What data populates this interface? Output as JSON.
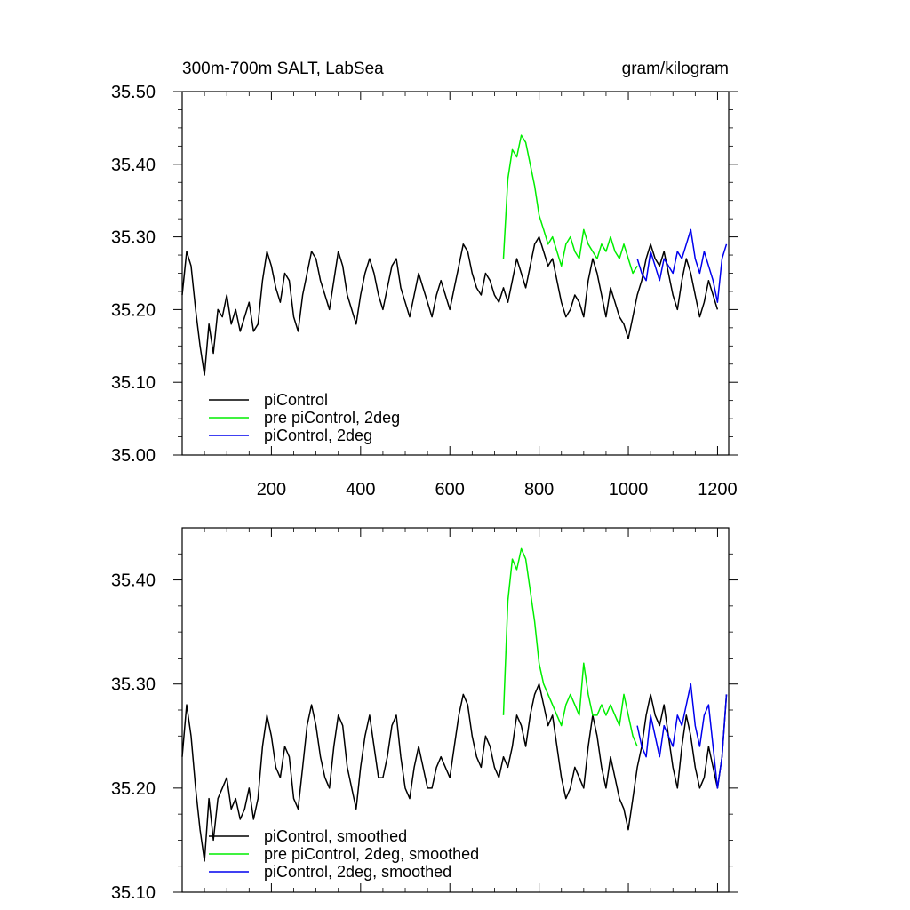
{
  "chart_data": [
    {
      "type": "line",
      "title": "300m-700m SALT, LabSea",
      "units": "gram/kilogram",
      "xlim": [
        0,
        1225
      ],
      "ylim": [
        35.0,
        35.5
      ],
      "xticks": [
        200,
        400,
        600,
        800,
        1000,
        1200
      ],
      "xtick_labels": [
        "200",
        "400",
        "600",
        "800",
        "1000",
        "1200"
      ],
      "yticks": [
        35.0,
        35.1,
        35.2,
        35.3,
        35.4,
        35.5
      ],
      "ytick_labels": [
        "35.00",
        "35.10",
        "35.20",
        "35.30",
        "35.40",
        "35.50"
      ],
      "legend_position": "lower-left",
      "series": [
        {
          "name": "piControl",
          "color": "#000000",
          "x": [
            0,
            10,
            20,
            30,
            40,
            50,
            60,
            70,
            80,
            90,
            100,
            110,
            120,
            130,
            140,
            150,
            160,
            170,
            180,
            190,
            200,
            210,
            220,
            230,
            240,
            250,
            260,
            270,
            280,
            290,
            300,
            310,
            320,
            330,
            340,
            350,
            360,
            370,
            380,
            390,
            400,
            410,
            420,
            430,
            440,
            450,
            460,
            470,
            480,
            490,
            500,
            510,
            520,
            530,
            540,
            550,
            560,
            570,
            580,
            590,
            600,
            610,
            620,
            630,
            640,
            650,
            660,
            670,
            680,
            690,
            700,
            710,
            720,
            730,
            740,
            750,
            760,
            770,
            780,
            790,
            800,
            810,
            820,
            830,
            840,
            850,
            860,
            870,
            880,
            890,
            900,
            910,
            920,
            930,
            940,
            950,
            960,
            970,
            980,
            990,
            1000,
            1010,
            1020,
            1030,
            1040,
            1050,
            1060,
            1070,
            1080,
            1090,
            1100,
            1110,
            1120,
            1130,
            1140,
            1150,
            1160,
            1170,
            1180,
            1190,
            1200
          ],
          "y": [
            35.22,
            35.28,
            35.26,
            35.2,
            35.15,
            35.11,
            35.18,
            35.14,
            35.2,
            35.19,
            35.22,
            35.18,
            35.2,
            35.17,
            35.19,
            35.21,
            35.17,
            35.18,
            35.24,
            35.28,
            35.26,
            35.23,
            35.21,
            35.25,
            35.24,
            35.19,
            35.17,
            35.22,
            35.25,
            35.28,
            35.27,
            35.24,
            35.22,
            35.2,
            35.24,
            35.28,
            35.26,
            35.22,
            35.2,
            35.18,
            35.22,
            35.25,
            35.27,
            35.25,
            35.22,
            35.2,
            35.23,
            35.26,
            35.27,
            35.23,
            35.21,
            35.19,
            35.22,
            35.25,
            35.23,
            35.21,
            35.19,
            35.22,
            35.24,
            35.22,
            35.2,
            35.23,
            35.26,
            35.29,
            35.28,
            35.25,
            35.23,
            35.22,
            35.25,
            35.24,
            35.22,
            35.21,
            35.23,
            35.21,
            35.24,
            35.27,
            35.25,
            35.23,
            35.26,
            35.29,
            35.3,
            35.28,
            35.26,
            35.27,
            35.24,
            35.21,
            35.19,
            35.2,
            35.22,
            35.21,
            35.19,
            35.24,
            35.27,
            35.25,
            35.22,
            35.19,
            35.23,
            35.21,
            35.19,
            35.18,
            35.16,
            35.19,
            35.22,
            35.24,
            35.27,
            35.29,
            35.27,
            35.26,
            35.28,
            35.25,
            35.22,
            35.2,
            35.24,
            35.27,
            35.25,
            35.22,
            35.19,
            35.21,
            35.24,
            35.22,
            35.2
          ]
        },
        {
          "name": "pre piControl, 2deg",
          "color": "#00ee00",
          "x": [
            720,
            730,
            740,
            750,
            760,
            770,
            780,
            790,
            800,
            810,
            820,
            830,
            840,
            850,
            860,
            870,
            880,
            890,
            900,
            910,
            920,
            930,
            940,
            950,
            960,
            970,
            980,
            990,
            1000,
            1010,
            1020
          ],
          "y": [
            35.27,
            35.38,
            35.42,
            35.41,
            35.44,
            35.43,
            35.4,
            35.37,
            35.33,
            35.31,
            35.29,
            35.3,
            35.28,
            35.26,
            35.29,
            35.3,
            35.28,
            35.27,
            35.31,
            35.29,
            35.28,
            35.27,
            35.29,
            35.28,
            35.3,
            35.28,
            35.27,
            35.29,
            35.27,
            35.25,
            35.26
          ]
        },
        {
          "name": "piControl, 2deg",
          "color": "#0000ee",
          "x": [
            1020,
            1030,
            1040,
            1050,
            1060,
            1070,
            1080,
            1090,
            1100,
            1110,
            1120,
            1130,
            1140,
            1150,
            1160,
            1170,
            1180,
            1190,
            1200,
            1210,
            1220
          ],
          "y": [
            35.27,
            35.25,
            35.24,
            35.28,
            35.26,
            35.24,
            35.27,
            35.26,
            35.25,
            35.28,
            35.27,
            35.29,
            35.31,
            35.27,
            35.25,
            35.28,
            35.26,
            35.24,
            35.21,
            35.27,
            35.29
          ]
        }
      ]
    },
    {
      "type": "line",
      "xlim": [
        0,
        1225
      ],
      "ylim": [
        35.1,
        35.45
      ],
      "xticks": [
        200,
        400,
        600,
        800,
        1000,
        1200
      ],
      "yticks": [
        35.1,
        35.2,
        35.3,
        35.4
      ],
      "ytick_labels": [
        "35.10",
        "35.20",
        "35.30",
        "35.40"
      ],
      "legend_position": "lower-left",
      "series": [
        {
          "name": "piControl, smoothed",
          "color": "#000000",
          "x": [
            0,
            10,
            20,
            30,
            40,
            50,
            60,
            70,
            80,
            90,
            100,
            110,
            120,
            130,
            140,
            150,
            160,
            170,
            180,
            190,
            200,
            210,
            220,
            230,
            240,
            250,
            260,
            270,
            280,
            290,
            300,
            310,
            320,
            330,
            340,
            350,
            360,
            370,
            380,
            390,
            400,
            410,
            420,
            430,
            440,
            450,
            460,
            470,
            480,
            490,
            500,
            510,
            520,
            530,
            540,
            550,
            560,
            570,
            580,
            590,
            600,
            610,
            620,
            630,
            640,
            650,
            660,
            670,
            680,
            690,
            700,
            710,
            720,
            730,
            740,
            750,
            760,
            770,
            780,
            790,
            800,
            810,
            820,
            830,
            840,
            850,
            860,
            870,
            880,
            890,
            900,
            910,
            920,
            930,
            940,
            950,
            960,
            970,
            980,
            990,
            1000,
            1010,
            1020,
            1030,
            1040,
            1050,
            1060,
            1070,
            1080,
            1090,
            1100,
            1110,
            1120,
            1130,
            1140,
            1150,
            1160,
            1170,
            1180,
            1190,
            1200,
            1210,
            1220
          ],
          "y": [
            35.23,
            35.28,
            35.25,
            35.2,
            35.16,
            35.13,
            35.19,
            35.15,
            35.19,
            35.2,
            35.21,
            35.18,
            35.19,
            35.17,
            35.18,
            35.2,
            35.17,
            35.19,
            35.24,
            35.27,
            35.25,
            35.22,
            35.21,
            35.24,
            35.23,
            35.19,
            35.18,
            35.22,
            35.26,
            35.28,
            35.26,
            35.23,
            35.21,
            35.2,
            35.24,
            35.27,
            35.26,
            35.22,
            35.2,
            35.18,
            35.22,
            35.25,
            35.27,
            35.24,
            35.21,
            35.21,
            35.23,
            35.26,
            35.27,
            35.23,
            35.2,
            35.19,
            35.22,
            35.24,
            35.22,
            35.2,
            35.2,
            35.22,
            35.23,
            35.22,
            35.21,
            35.24,
            35.27,
            35.29,
            35.28,
            35.25,
            35.23,
            35.22,
            35.25,
            35.24,
            35.22,
            35.21,
            35.23,
            35.22,
            35.24,
            35.27,
            35.26,
            35.24,
            35.27,
            35.29,
            35.3,
            35.28,
            35.26,
            35.27,
            35.24,
            35.21,
            35.19,
            35.2,
            35.22,
            35.21,
            35.2,
            35.24,
            35.27,
            35.25,
            35.22,
            35.2,
            35.23,
            35.21,
            35.19,
            35.18,
            35.16,
            35.19,
            35.22,
            35.24,
            35.27,
            35.29,
            35.27,
            35.26,
            35.28,
            35.25,
            35.22,
            35.2,
            35.24,
            35.27,
            35.25,
            35.22,
            35.2,
            35.21,
            35.24,
            35.22,
            35.2,
            35.23,
            35.29
          ]
        },
        {
          "name": "pre piControl, 2deg, smoothed",
          "color": "#00ee00",
          "x": [
            720,
            730,
            740,
            750,
            760,
            770,
            780,
            790,
            800,
            810,
            820,
            830,
            840,
            850,
            860,
            870,
            880,
            890,
            900,
            910,
            920,
            930,
            940,
            950,
            960,
            970,
            980,
            990,
            1000,
            1010,
            1020
          ],
          "y": [
            35.27,
            35.38,
            35.42,
            35.41,
            35.43,
            35.42,
            35.39,
            35.36,
            35.32,
            35.3,
            35.29,
            35.28,
            35.27,
            35.26,
            35.28,
            35.29,
            35.28,
            35.27,
            35.32,
            35.29,
            35.27,
            35.27,
            35.28,
            35.27,
            35.28,
            35.27,
            35.26,
            35.29,
            35.27,
            35.25,
            35.24
          ]
        },
        {
          "name": "piControl, 2deg, smoothed",
          "color": "#0000ee",
          "x": [
            1020,
            1030,
            1040,
            1050,
            1060,
            1070,
            1080,
            1090,
            1100,
            1110,
            1120,
            1130,
            1140,
            1150,
            1160,
            1170,
            1180,
            1190,
            1200,
            1210,
            1220
          ],
          "y": [
            35.26,
            35.24,
            35.23,
            35.27,
            35.25,
            35.23,
            35.26,
            35.25,
            35.24,
            35.27,
            35.26,
            35.28,
            35.3,
            35.26,
            35.24,
            35.27,
            35.28,
            35.24,
            35.2,
            35.23,
            35.29
          ]
        }
      ]
    }
  ]
}
